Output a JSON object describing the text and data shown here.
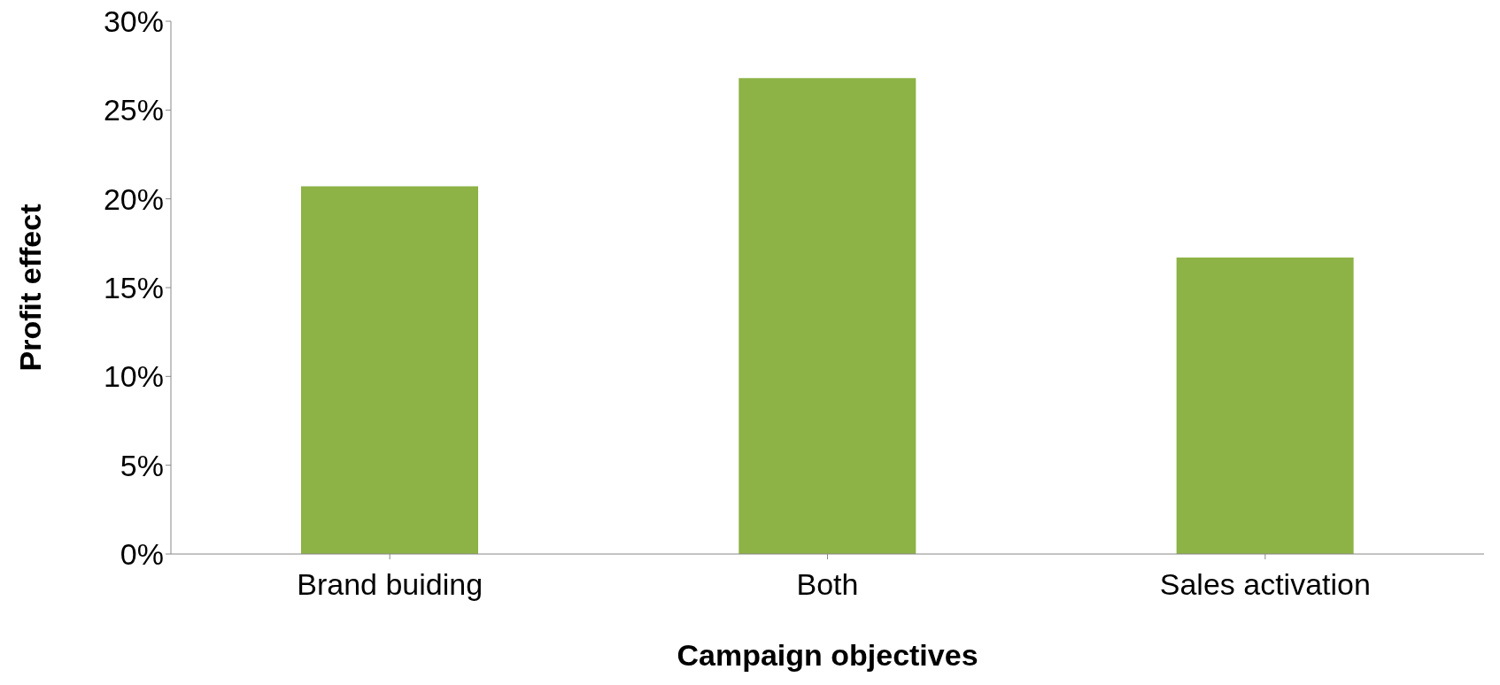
{
  "chart_data": {
    "type": "bar",
    "xlabel": "Campaign objectives",
    "ylabel": "Profit effect",
    "categories": [
      "Brand buiding",
      "Both",
      "Sales activation"
    ],
    "values": [
      0.207,
      0.268,
      0.167
    ],
    "color": "#8db246",
    "ylim": [
      0,
      0.3
    ],
    "yticks": [
      {
        "value": 0,
        "label": "0%"
      },
      {
        "value": 0.05,
        "label": "5%"
      },
      {
        "value": 0.1,
        "label": "10%"
      },
      {
        "value": 0.15,
        "label": "15%"
      },
      {
        "value": 0.2,
        "label": "20%"
      },
      {
        "value": 0.25,
        "label": "25%"
      },
      {
        "value": 0.3,
        "label": "30%"
      }
    ],
    "grid": false,
    "legend": false
  }
}
